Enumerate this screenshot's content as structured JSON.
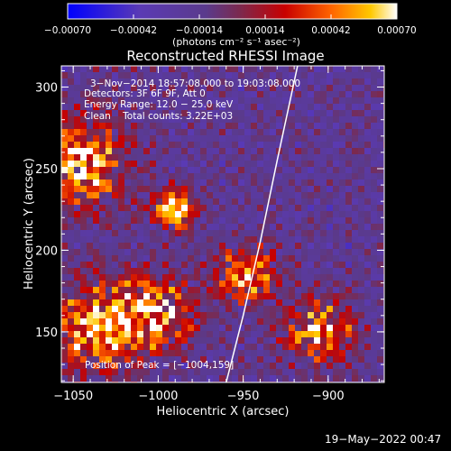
{
  "chart_data": {
    "type": "heatmap",
    "title": "Reconstructed RHESSI Image",
    "xlabel": "Heliocentric X (arcsec)",
    "ylabel": "Heliocentric Y (arcsec)",
    "xlim": [
      -1057,
      -867
    ],
    "ylim": [
      119,
      313
    ],
    "x_ticks": [
      -1050,
      -1000,
      -950,
      -900
    ],
    "y_ticks": [
      150,
      200,
      250,
      300
    ],
    "x_tick_labels": [
      "−1050",
      "−1000",
      "−950",
      "−900"
    ],
    "y_tick_labels": [
      "150",
      "200",
      "250",
      "300"
    ],
    "colorbar": {
      "range": [
        -0.0007,
        0.0007
      ],
      "ticks": [
        -0.0007,
        -0.00042,
        -0.00014,
        0.00014,
        0.00042,
        0.0007
      ],
      "tick_labels": [
        "−0.00070",
        "−0.00042",
        "−0.00014",
        "0.00014",
        "0.00042",
        "0.00070"
      ],
      "unit_label": "(photons cm⁻² s⁻¹ asec⁻²)"
    },
    "annotations": [
      "3−Nov−2014 18:57:08.000 to 19:03:08.000",
      "Detectors: 3F 6F 9F, Att 0",
      "Energy Range: 12.0 − 25.0 keV",
      "Clean    Total counts: 3.22E+03"
    ],
    "peak_label": "Position of Peak = [−1004,159]",
    "peak": [
      -1004,
      159
    ],
    "limb_curve": [
      [
        -960,
        119
      ],
      [
        -950,
        160
      ],
      [
        -940,
        205
      ],
      [
        -930,
        255
      ],
      [
        -918,
        313
      ]
    ],
    "grid": false
  },
  "footer": {
    "timestamp": "19−May−2022 00:47"
  },
  "colors": {
    "background": "#000000",
    "text": "#ffffff",
    "colormap": [
      "#0000ff",
      "#5a3ab4",
      "#5a3a8c",
      "#7a2a50",
      "#c80000",
      "#ff6400",
      "#ffc800",
      "#ffffff"
    ]
  }
}
